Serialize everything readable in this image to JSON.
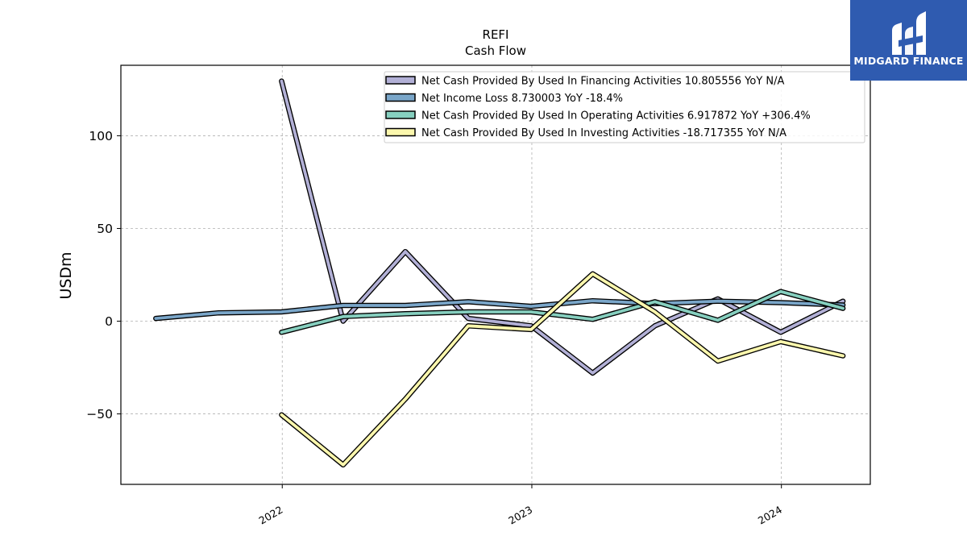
{
  "title": "REFI",
  "subtitle": "Cash Flow",
  "logo": {
    "text": "MIDGARD FINANCE",
    "background": "#2f5bb0"
  },
  "chart_data": {
    "type": "line",
    "title": "REFI",
    "subtitle": "Cash Flow",
    "xlabel": "",
    "ylabel": "USDm",
    "x_ticks": [
      "2022",
      "2023",
      "2024"
    ],
    "y_ticks": [
      -50,
      0,
      50,
      100
    ],
    "ylim": [
      -88,
      138
    ],
    "xlim": [
      "2021-05-10",
      "2024-05-10"
    ],
    "grid": true,
    "legend_position": "top-right",
    "series": [
      {
        "name": "Net Cash Provided By Used In Financing Activities  10.805556 YoY N/A",
        "color": "#b2b0d6",
        "x": [
          "2021-12-31",
          "2022-03-31",
          "2022-06-30",
          "2022-09-30",
          "2022-12-31",
          "2023-03-31",
          "2023-06-30",
          "2023-09-30",
          "2023-12-31",
          "2024-03-31"
        ],
        "y": [
          129.5,
          0,
          37.5,
          1.5,
          -2.5,
          -28,
          -2.5,
          12,
          -6,
          10.8
        ]
      },
      {
        "name": "Net Income Loss  8.730003 YoY -18.4%",
        "color": "#7aa6c9",
        "x": [
          "2021-06-30",
          "2021-09-30",
          "2021-12-31",
          "2022-03-31",
          "2022-06-30",
          "2022-09-30",
          "2022-12-31",
          "2023-03-31",
          "2023-06-30",
          "2023-09-30",
          "2023-12-31",
          "2024-03-31"
        ],
        "y": [
          1.5,
          4.5,
          5,
          8.5,
          8.5,
          10.5,
          8,
          11,
          9.5,
          10.8,
          10,
          8.7
        ]
      },
      {
        "name": "Net Cash Provided By Used In Operating Activities  6.917872 YoY +306.4%",
        "color": "#86cfbf",
        "x": [
          "2021-12-31",
          "2022-03-31",
          "2022-06-30",
          "2022-09-30",
          "2022-12-31",
          "2023-03-31",
          "2023-06-30",
          "2023-09-30",
          "2023-12-31",
          "2024-03-31"
        ],
        "y": [
          -6,
          2.5,
          4,
          5,
          5,
          1,
          10.5,
          0.5,
          16,
          6.9
        ]
      },
      {
        "name": "Net Cash Provided By Used In Investing Activities  -18.717355 YoY N/A",
        "color": "#fbf7ad",
        "x": [
          "2021-12-31",
          "2022-03-31",
          "2022-06-30",
          "2022-09-30",
          "2022-12-31",
          "2023-03-31",
          "2023-06-30",
          "2023-09-30",
          "2023-12-31",
          "2024-03-31"
        ],
        "y": [
          -50.5,
          -77.5,
          -42,
          -2.5,
          -4.5,
          25.5,
          5,
          -21.5,
          -11,
          -18.7
        ]
      }
    ]
  }
}
